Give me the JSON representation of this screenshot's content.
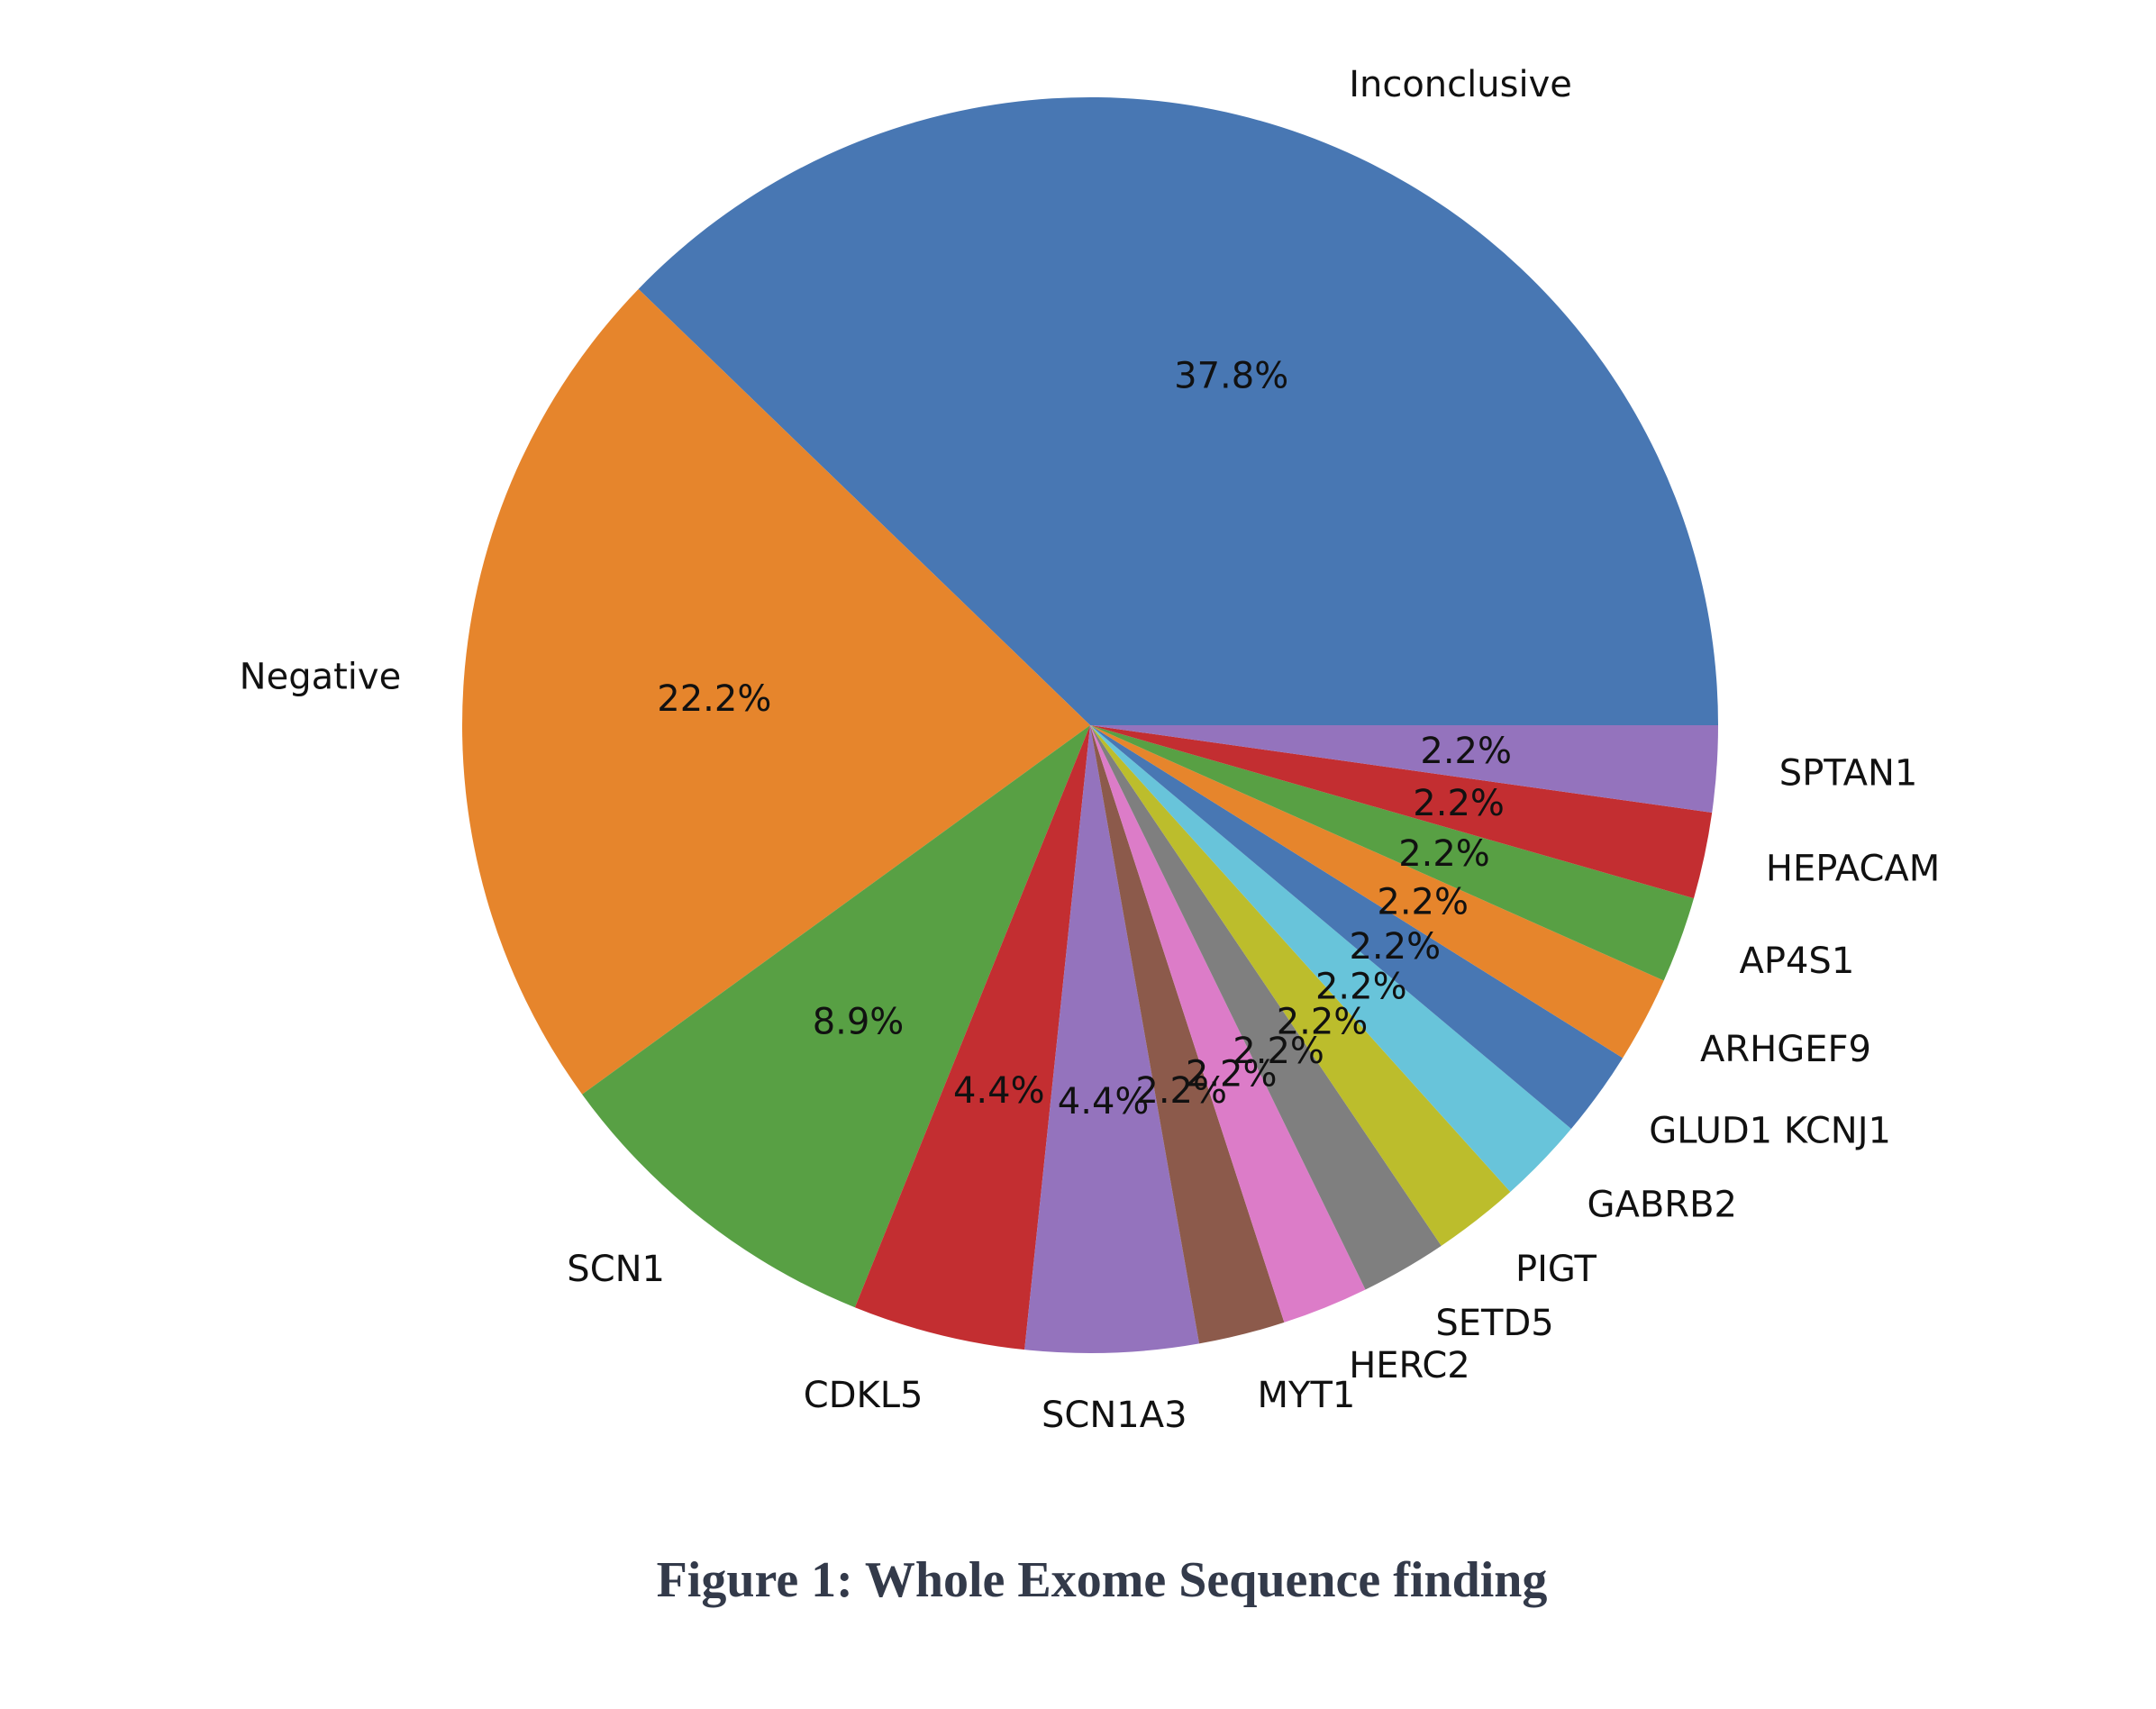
{
  "figure": {
    "caption": "Figure 1: Whole Exome Sequence finding"
  },
  "chart_data": {
    "type": "pie",
    "title": "Figure 1: Whole Exome Sequence finding",
    "start_angle_deg": 0,
    "direction": "counterclockwise",
    "legend": "none",
    "grid": false,
    "total_units": 45,
    "slices": [
      {
        "label": "Inconclusive",
        "value": 17,
        "pct_label": "37.8%",
        "color": "#4877b3"
      },
      {
        "label": "Negative",
        "value": 10,
        "pct_label": "22.2%",
        "color": "#e6852c"
      },
      {
        "label": "SCN1",
        "value": 4,
        "pct_label": "8.9%",
        "color": "#58a044"
      },
      {
        "label": "CDKL5",
        "value": 2,
        "pct_label": "4.4%",
        "color": "#c32e31"
      },
      {
        "label": "SCN1A3",
        "value": 2,
        "pct_label": "4.4%",
        "color": "#9473bd"
      },
      {
        "label": "MYT1",
        "value": 1,
        "pct_label": "2.2%",
        "color": "#8c5a4b"
      },
      {
        "label": "HERC2",
        "value": 1,
        "pct_label": "2.2%",
        "color": "#dc7cc8"
      },
      {
        "label": "SETD5",
        "value": 1,
        "pct_label": "2.2%",
        "color": "#7f7f7f"
      },
      {
        "label": "PIGT",
        "value": 1,
        "pct_label": "2.2%",
        "color": "#bcbd2c"
      },
      {
        "label": "GABRB2",
        "value": 1,
        "pct_label": "2.2%",
        "color": "#68c4da"
      },
      {
        "label": "GLUD1 KCNJ1",
        "value": 1,
        "pct_label": "2.2%",
        "color": "#4877b3"
      },
      {
        "label": "ARHGEF9",
        "value": 1,
        "pct_label": "2.2%",
        "color": "#e6852c"
      },
      {
        "label": "AP4S1",
        "value": 1,
        "pct_label": "2.2%",
        "color": "#58a044"
      },
      {
        "label": "HEPACAM",
        "value": 1,
        "pct_label": "2.2%",
        "color": "#c32e31"
      },
      {
        "label": "SPTAN1",
        "value": 1,
        "pct_label": "2.2%",
        "color": "#9473bd"
      }
    ]
  }
}
